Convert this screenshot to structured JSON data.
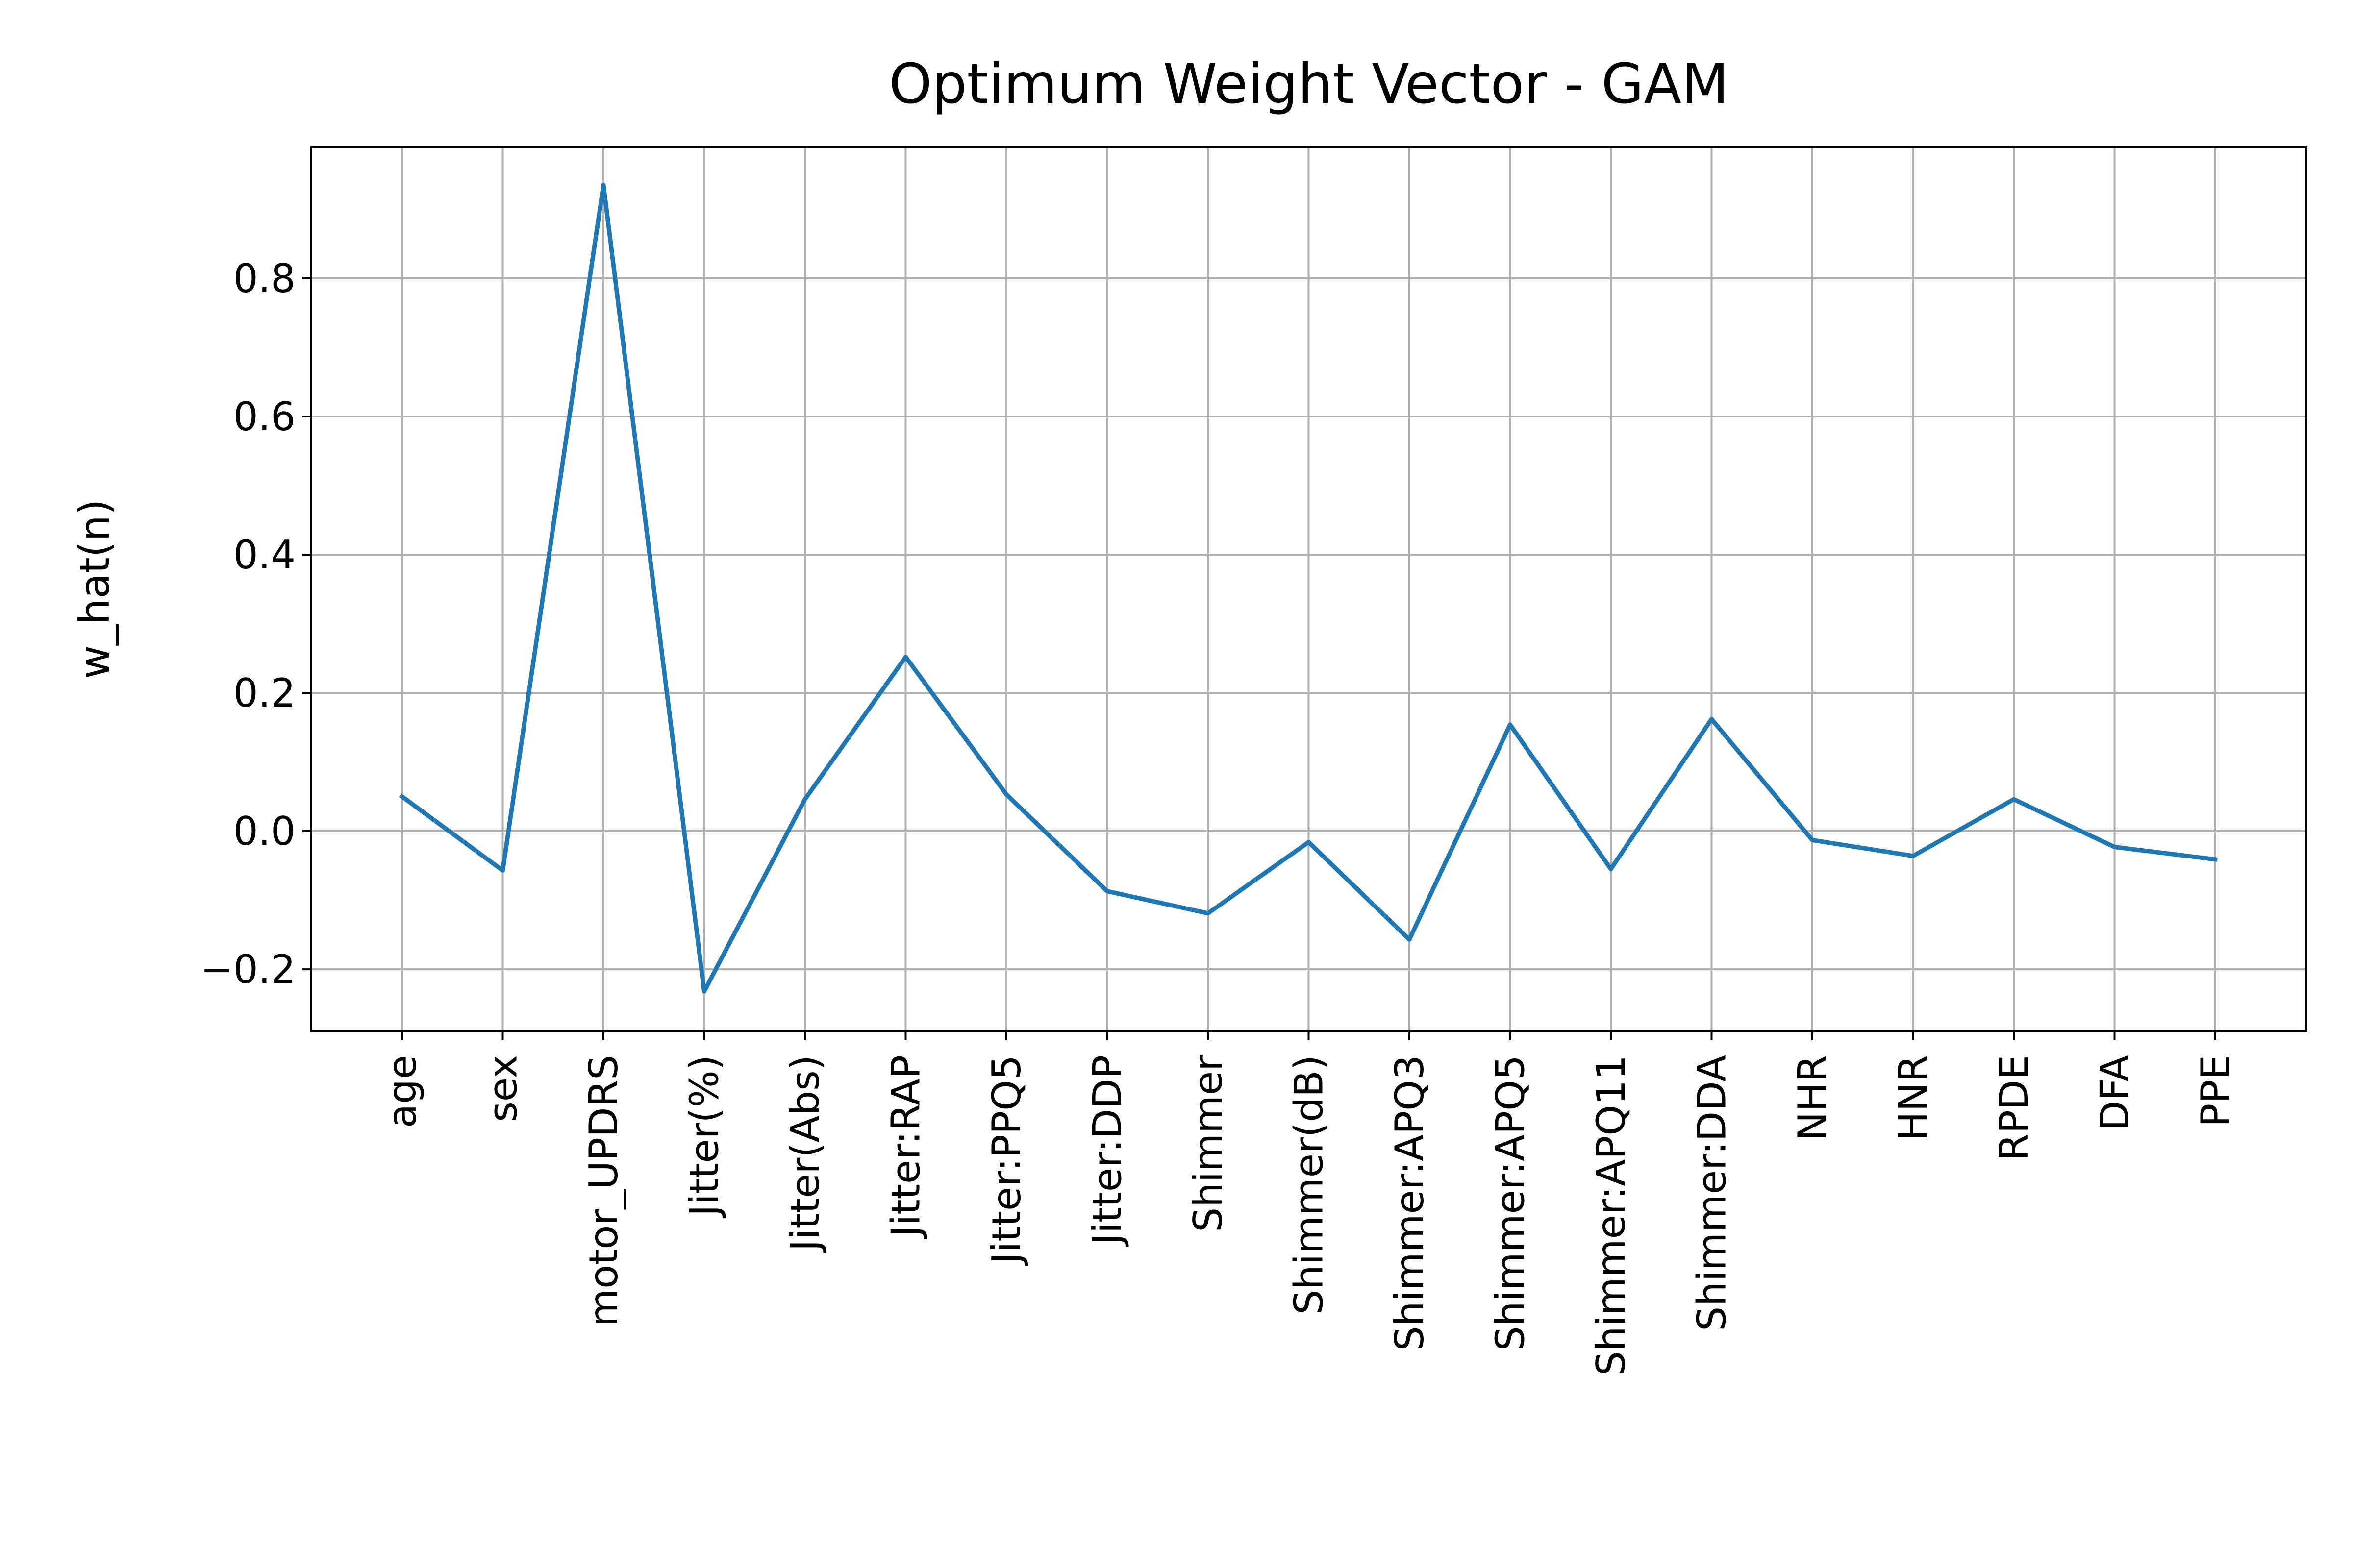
{
  "chart_data": {
    "type": "line",
    "title": "Optimum Weight Vector - GAM",
    "xlabel": "",
    "ylabel": "w_hat(n)",
    "ylim": [
      -0.29,
      0.99
    ],
    "yticks": [
      -0.2,
      0.0,
      0.2,
      0.4,
      0.6,
      0.8
    ],
    "ytick_labels": [
      "−0.2",
      "0.0",
      "0.2",
      "0.4",
      "0.6",
      "0.8"
    ],
    "grid": true,
    "categories": [
      "age",
      "sex",
      "motor_UPDRS",
      "Jitter(%)",
      "Jitter(Abs)",
      "Jitter:RAP",
      "Jitter:PPQ5",
      "Jitter:DDP",
      "Shimmer",
      "Shimmer(dB)",
      "Shimmer:APQ3",
      "Shimmer:APQ5",
      "Shimmer:APQ11",
      "Shimmer:DDA",
      "NHR",
      "HNR",
      "RPDE",
      "DFA",
      "PPE"
    ],
    "series": [
      {
        "color": "#1f77b4",
        "values": [
          0.05,
          -0.057,
          0.935,
          -0.232,
          0.046,
          0.252,
          0.053,
          -0.087,
          -0.119,
          -0.016,
          -0.157,
          0.154,
          -0.055,
          0.162,
          -0.013,
          -0.036,
          0.046,
          -0.023,
          -0.041
        ]
      }
    ]
  }
}
